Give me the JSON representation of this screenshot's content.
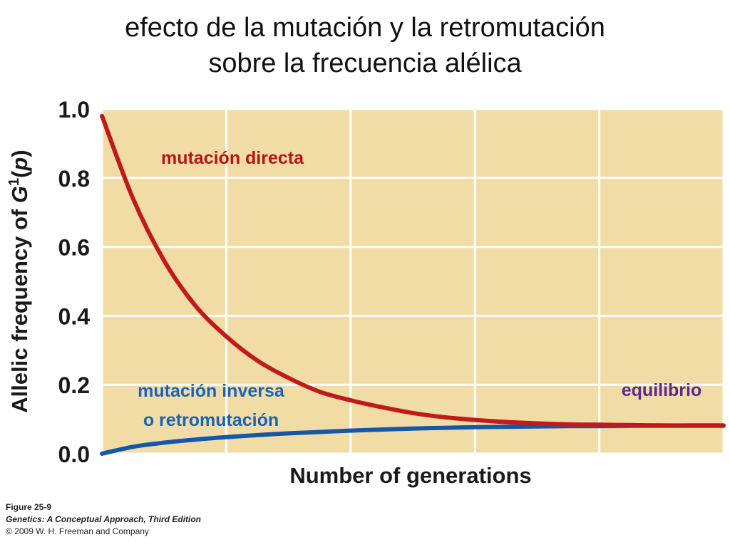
{
  "title": {
    "line1": "efecto de la mutación y la retromutación",
    "line2": "sobre la frecuencia alélica"
  },
  "chart_data": {
    "type": "line",
    "ylabel": "Allelic frequency of G¹(p)",
    "ylabel_parts": {
      "prefix": "Allelic frequency of ",
      "gene": "G",
      "sup": "1",
      "paren": "(",
      "p": "p",
      "close": ")"
    },
    "xlabel": "Number of generations",
    "ylim": [
      0.0,
      1.0
    ],
    "xlim": [
      0,
      100
    ],
    "y_ticks": [
      "0.0",
      "0.2",
      "0.4",
      "0.6",
      "0.8",
      "1.0"
    ],
    "y_tick_values": [
      0.0,
      0.2,
      0.4,
      0.6,
      0.8,
      1.0
    ],
    "x_gridlines": [
      0,
      20,
      40,
      60,
      80,
      100
    ],
    "grid": true,
    "background_color": "#f2dca6",
    "series": [
      {
        "name": "mutación directa",
        "color": "#c01a1a",
        "x": [
          0,
          5,
          10,
          15,
          20,
          25,
          30,
          35,
          40,
          45,
          50,
          55,
          60,
          65,
          70,
          75,
          80,
          85,
          90,
          95,
          100
        ],
        "y": [
          0.98,
          0.74,
          0.56,
          0.43,
          0.34,
          0.27,
          0.22,
          0.18,
          0.155,
          0.135,
          0.118,
          0.106,
          0.098,
          0.092,
          0.088,
          0.085,
          0.084,
          0.083,
          0.082,
          0.082,
          0.082
        ]
      },
      {
        "name": "mutación inversa o retromutación",
        "color": "#1558a8",
        "x": [
          0,
          5,
          10,
          15,
          20,
          25,
          30,
          35,
          40,
          45,
          50,
          55,
          60,
          65,
          70,
          75,
          80,
          85,
          90,
          95,
          100
        ],
        "y": [
          0.0,
          0.02,
          0.032,
          0.041,
          0.048,
          0.054,
          0.059,
          0.063,
          0.067,
          0.07,
          0.073,
          0.075,
          0.077,
          0.078,
          0.079,
          0.08,
          0.08,
          0.081,
          0.081,
          0.081,
          0.081
        ]
      }
    ],
    "annotations": {
      "direct": "mutación directa",
      "reverse_line1": "mutación inversa",
      "reverse_line2": "o retromutación",
      "equilibrium": "equilibrio",
      "direct_color": "#b81414",
      "reverse_color": "#1a63b8",
      "equilibrium_color": "#5a2a8a"
    }
  },
  "caption": {
    "figure": "Figure 25-9",
    "book": "Genetics: A Conceptual Approach, Third Edition",
    "copyright": "© 2009 W. H. Freeman and Company"
  }
}
